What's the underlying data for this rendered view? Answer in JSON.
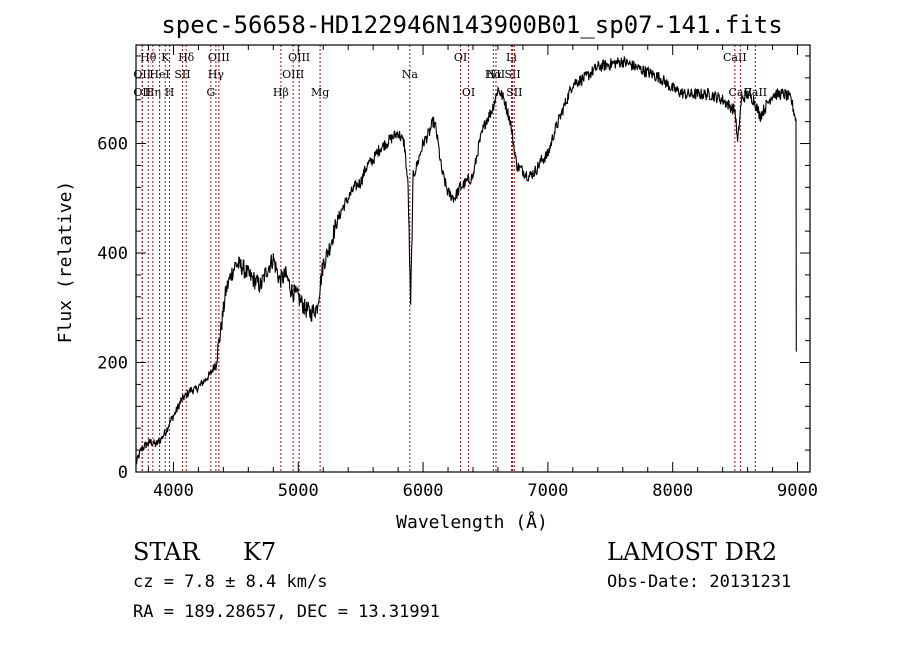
{
  "chart_data": {
    "type": "line",
    "title": "spec-56658-HD122946N143900B01_sp07-141.fits",
    "xlabel": "Wavelength (Å)",
    "ylabel": "Flux (relative)",
    "xlim": [
      3700,
      9100
    ],
    "ylim": [
      0,
      780
    ],
    "x_ticks": [
      4000,
      5000,
      6000,
      7000,
      8000,
      9000
    ],
    "y_ticks": [
      0,
      200,
      400,
      600
    ],
    "grid": false,
    "line_color": "#000000",
    "marker_color": "#a01010",
    "series": [
      {
        "x": [
          3700,
          3740,
          3780,
          3820,
          3860,
          3900,
          3940,
          3980,
          4020,
          4060,
          4100,
          4140,
          4180,
          4220,
          4260,
          4300,
          4340,
          4380,
          4420,
          4460,
          4500,
          4550,
          4600,
          4650,
          4700,
          4750,
          4800,
          4850,
          4900,
          4950,
          5000,
          5050,
          5100,
          5150,
          5200,
          5250,
          5300,
          5350,
          5400,
          5450,
          5500,
          5550,
          5600,
          5650,
          5700,
          5750,
          5800,
          5850,
          5880,
          5900,
          5920,
          5950,
          6000,
          6050,
          6080,
          6100,
          6120,
          6150,
          6200,
          6250,
          6300,
          6350,
          6400,
          6450,
          6500,
          6550,
          6600,
          6650,
          6700,
          6750,
          6800,
          6850,
          6900,
          6950,
          7000,
          7050,
          7100,
          7150,
          7200,
          7300,
          7400,
          7500,
          7600,
          7700,
          7800,
          7900,
          8000,
          8100,
          8200,
          8300,
          8400,
          8450,
          8500,
          8520,
          8550,
          8600,
          8650,
          8700,
          8800,
          8900,
          8950,
          8990
        ],
        "y": [
          15,
          40,
          50,
          55,
          50,
          60,
          75,
          95,
          110,
          130,
          140,
          150,
          150,
          160,
          170,
          180,
          200,
          260,
          330,
          360,
          380,
          375,
          360,
          350,
          340,
          370,
          390,
          350,
          360,
          330,
          320,
          300,
          290,
          300,
          380,
          410,
          450,
          480,
          500,
          520,
          530,
          560,
          570,
          590,
          600,
          610,
          620,
          600,
          520,
          300,
          540,
          560,
          600,
          620,
          640,
          630,
          600,
          550,
          510,
          500,
          520,
          530,
          540,
          600,
          640,
          660,
          700,
          680,
          640,
          560,
          550,
          540,
          550,
          570,
          580,
          620,
          650,
          680,
          710,
          720,
          740,
          745,
          750,
          740,
          730,
          720,
          700,
          690,
          690,
          690,
          680,
          670,
          660,
          600,
          680,
          690,
          680,
          650,
          690,
          690,
          680,
          640
        ]
      }
    ],
    "line_markers": [
      {
        "x": 3750,
        "label": "OII",
        "row": 2
      },
      {
        "x": 3750,
        "label": "OII",
        "row": 3
      },
      {
        "x": 3798,
        "label": "Hθ",
        "row": 1
      },
      {
        "x": 3835,
        "label": "Hη",
        "row": 3
      },
      {
        "x": 3889,
        "label": "HeI",
        "row": 2
      },
      {
        "x": 3934,
        "label": "K",
        "row": 1
      },
      {
        "x": 3969,
        "label": "H",
        "row": 3
      },
      {
        "x": 4072,
        "label": "SII",
        "row": 2
      },
      {
        "x": 4102,
        "label": "Hδ",
        "row": 1
      },
      {
        "x": 4300,
        "label": "G",
        "row": 3
      },
      {
        "x": 4340,
        "label": "Hγ",
        "row": 2
      },
      {
        "x": 4364,
        "label": "OIII",
        "row": 1
      },
      {
        "x": 4861,
        "label": "Hβ",
        "row": 3
      },
      {
        "x": 4959,
        "label": "OIII",
        "row": 2
      },
      {
        "x": 5007,
        "label": "OIII",
        "row": 1
      },
      {
        "x": 5175,
        "label": "Mg",
        "row": 3
      },
      {
        "x": 5894,
        "label": "Na",
        "row": 2
      },
      {
        "x": 6300,
        "label": "OI",
        "row": 1
      },
      {
        "x": 6364,
        "label": "OI",
        "row": 3
      },
      {
        "x": 6563,
        "label": "Hα",
        "row": 2
      },
      {
        "x": 6584,
        "label": "NII",
        "row": 2
      },
      {
        "x": 6708,
        "label": "Li",
        "row": 1
      },
      {
        "x": 6717,
        "label": "SII",
        "row": 2
      },
      {
        "x": 6731,
        "label": "SII",
        "row": 3
      },
      {
        "x": 8498,
        "label": "CaII",
        "row": 1
      },
      {
        "x": 8542,
        "label": "CaII",
        "row": 3
      },
      {
        "x": 8662,
        "label": "CaII",
        "row": 3
      }
    ]
  },
  "info": {
    "object_class": "STAR",
    "subclass": "K7",
    "cz": "cz = 7.8 ± 8.4 km/s",
    "coords": "RA = 189.28657, DEC =  13.31991",
    "survey": "LAMOST DR2",
    "obs_date": "Obs-Date: 20131231"
  }
}
